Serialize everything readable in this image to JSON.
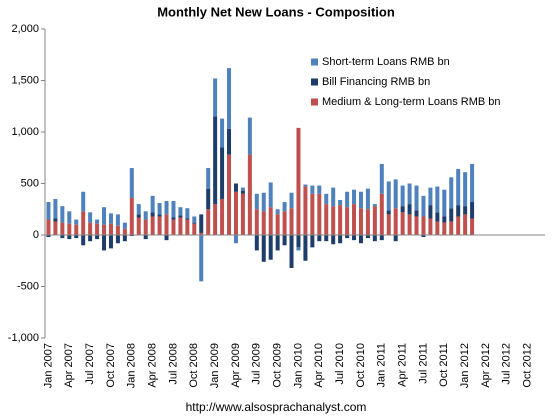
{
  "chart_data": {
    "type": "bar",
    "stacked": true,
    "title": "Monthly Net New Loans - Composition",
    "footer": "http://www.alsosprachanalyst.com",
    "categories": [
      "Jan 2007",
      null,
      null,
      "Apr 2007",
      null,
      null,
      "Jul 2007",
      null,
      null,
      "Oct 2007",
      null,
      null,
      "Jan 2008",
      null,
      null,
      "Apr 2008",
      null,
      null,
      "Jul 2008",
      null,
      null,
      "Oct 2008",
      null,
      null,
      "Jan 2009",
      null,
      null,
      "Apr 2009",
      null,
      null,
      "Jul 2009",
      null,
      null,
      "Oct 2009",
      null,
      null,
      "Jan 2010",
      null,
      null,
      "Apr 2010",
      null,
      null,
      "Jul 2010",
      null,
      null,
      "Oct 2010",
      null,
      null,
      "Jan 2011",
      null,
      null,
      "Apr 2011",
      null,
      null,
      "Jul 2011",
      null,
      null,
      "Oct 2011",
      null,
      null,
      "Jan 2012",
      null,
      null,
      "Apr 2012",
      null,
      null,
      "Jul 2012",
      null,
      null,
      "Oct 2012",
      null,
      null
    ],
    "series": [
      {
        "name": "Short-term Loans RMB bn",
        "color": "#4f81bd",
        "values": [
          170,
          190,
          160,
          120,
          50,
          190,
          100,
          40,
          170,
          100,
          110,
          60,
          290,
          100,
          80,
          160,
          110,
          130,
          160,
          80,
          100,
          60,
          -450,
          200,
          370,
          280,
          590,
          -80,
          30,
          360,
          150,
          180,
          240,
          50,
          90,
          150,
          -30,
          20,
          80,
          80,
          100,
          180,
          50,
          150,
          140,
          160,
          200,
          20,
          290,
          280,
          280,
          200,
          200,
          240,
          200,
          170,
          250,
          260,
          300,
          350,
          330,
          370,
          null,
          null,
          null,
          null,
          null,
          null,
          null,
          null,
          null,
          null
        ]
      },
      {
        "name": "Bill Financing RMB bn",
        "color": "#1f3d6b",
        "values": [
          -20,
          30,
          -30,
          -40,
          -30,
          -100,
          -60,
          -40,
          -150,
          -130,
          -80,
          -60,
          -10,
          30,
          -40,
          40,
          20,
          -50,
          20,
          20,
          10,
          10,
          180,
          200,
          850,
          500,
          250,
          80,
          30,
          0,
          -150,
          -260,
          -240,
          -150,
          -100,
          -320,
          -120,
          -250,
          -120,
          -60,
          -60,
          -90,
          -80,
          -30,
          -50,
          -80,
          -30,
          -60,
          -50,
          40,
          -60,
          60,
          100,
          60,
          -20,
          130,
          90,
          60,
          130,
          110,
          80,
          160,
          null,
          null,
          null,
          null,
          null,
          null,
          null,
          null,
          null,
          null
        ]
      },
      {
        "name": "Medium & Long-term Loans RMB bn",
        "color": "#c0504d",
        "values": [
          150,
          130,
          120,
          110,
          100,
          230,
          120,
          110,
          100,
          110,
          90,
          60,
          360,
          170,
          150,
          180,
          180,
          200,
          150,
          170,
          150,
          110,
          20,
          250,
          300,
          350,
          780,
          420,
          400,
          780,
          250,
          230,
          270,
          200,
          230,
          260,
          1040,
          470,
          400,
          400,
          300,
          280,
          290,
          270,
          300,
          260,
          250,
          280,
          400,
          200,
          260,
          220,
          200,
          180,
          180,
          160,
          130,
          120,
          130,
          180,
          200,
          160,
          null,
          null,
          null,
          null,
          null,
          null,
          null,
          null,
          null,
          null
        ]
      }
    ],
    "ylim": [
      -1000,
      2000
    ],
    "yticks": [
      {
        "value": -1000,
        "label": "-1,000"
      },
      -500,
      0,
      500,
      {
        "value": 1000,
        "label": "1,000"
      },
      {
        "value": 1500,
        "label": "1,500"
      },
      {
        "value": 2000,
        "label": "2,000"
      }
    ],
    "legend": "top-right"
  }
}
